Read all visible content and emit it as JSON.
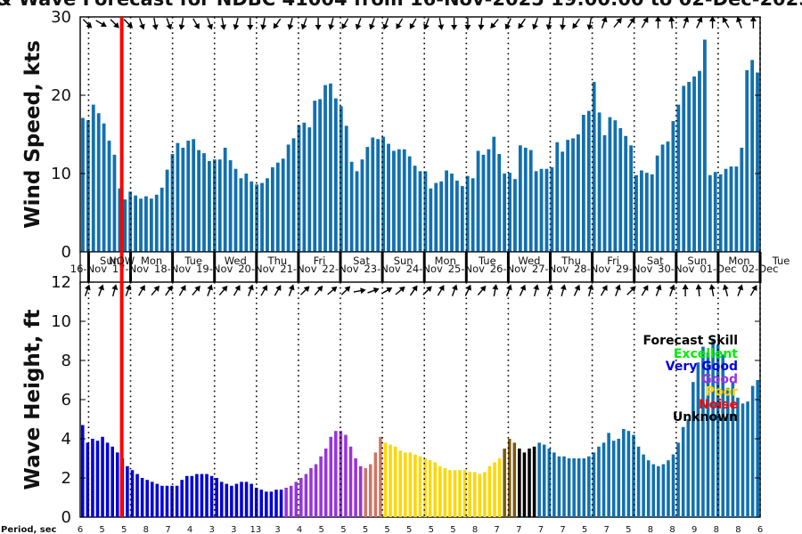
{
  "title": "& Wave Forecast for NDBC 41004 from 16-Nov-2025 19:00:00 to 02-Dec-2025",
  "now_label": "NOW",
  "period_label": "Period, sec",
  "colors": {
    "wind_bar": "#1170b0",
    "now_line": "#ff0000",
    "Excellent": "#00ee00",
    "Very Good": "#0000dd",
    "Good": "#9933dd",
    "Fair": "#cc7766",
    "Poor": "#ffd700",
    "Noise": "#ff0000",
    "Unknown": "#000000",
    "Transition": "#7a5a10",
    "Forecast": "#1170b0"
  },
  "days": [
    {
      "dow": "Sun",
      "date": "16-Nov"
    },
    {
      "dow": "Mon",
      "date": "17-Nov"
    },
    {
      "dow": "Tue",
      "date": "18-Nov"
    },
    {
      "dow": "Wed",
      "date": "19-Nov"
    },
    {
      "dow": "Thu",
      "date": "20-Nov"
    },
    {
      "dow": "Fri",
      "date": "21-Nov"
    },
    {
      "dow": "Sat",
      "date": "22-Nov"
    },
    {
      "dow": "Sun",
      "date": "23-Nov"
    },
    {
      "dow": "Mon",
      "date": "24-Nov"
    },
    {
      "dow": "Tue",
      "date": "25-Nov"
    },
    {
      "dow": "Wed",
      "date": "26-Nov"
    },
    {
      "dow": "Thu",
      "date": "27-Nov"
    },
    {
      "dow": "Fri",
      "date": "28-Nov"
    },
    {
      "dow": "Sat",
      "date": "29-Nov"
    },
    {
      "dow": "Sun",
      "date": "30-Nov"
    },
    {
      "dow": "Mon",
      "date": "01-Dec"
    },
    {
      "dow": "Tue",
      "date": "02-Dec"
    }
  ],
  "legend": {
    "title": "Forecast Skill",
    "items": [
      "Excellent",
      "Very Good",
      "Good",
      "Poor",
      "Noise",
      "Unknown"
    ]
  },
  "chart_data": [
    {
      "type": "bar",
      "ylabel": "Wind Speed, kts",
      "ylim": [
        0,
        30
      ],
      "yticks": [
        0,
        10,
        20,
        30
      ],
      "x_unit": "days since 16-Nov-2025 00:00",
      "xlim": [
        15.8,
        32.0
      ],
      "now_x": 16.79,
      "values": [
        17.1,
        16.8,
        18.8,
        17.7,
        16.4,
        14.2,
        12.4,
        8.1,
        6.7,
        7.7,
        7.2,
        6.8,
        7.1,
        6.8,
        7.3,
        8.2,
        10.5,
        12.5,
        13.9,
        13.3,
        14.2,
        14.4,
        13.0,
        12.6,
        11.6,
        11.8,
        11.8,
        13.3,
        11.7,
        10.6,
        9.4,
        10.0,
        9.0,
        8.6,
        8.8,
        9.4,
        10.8,
        11.4,
        11.9,
        13.7,
        14.5,
        16.2,
        16.5,
        15.9,
        19.3,
        19.5,
        21.3,
        21.5,
        19.6,
        18.6,
        16.1,
        11.5,
        10.3,
        11.8,
        13.4,
        14.6,
        14.4,
        14.7,
        13.8,
        12.9,
        13.1,
        13.1,
        12.2,
        11.0,
        10.3,
        10.3,
        8.1,
        8.8,
        9.0,
        10.4,
        10.0,
        9.1,
        8.4,
        9.7,
        9.4,
        12.9,
        12.4,
        13.1,
        14.7,
        12.5,
        10.0,
        10.1,
        9.3,
        13.6,
        13.3,
        13.0,
        10.3,
        10.6,
        10.6,
        10.8,
        14.0,
        12.8,
        14.3,
        14.5,
        15.0,
        17.5,
        18.0,
        21.7,
        17.8,
        14.9,
        17.2,
        16.8,
        15.8,
        14.8,
        13.6,
        9.8,
        10.4,
        10.1,
        9.9,
        12.3,
        13.7,
        14.1,
        16.7,
        18.8,
        21.2,
        21.7,
        22.4,
        23.1,
        27.1,
        9.8,
        10.2,
        9.9,
        10.6,
        10.9,
        10.9,
        13.3,
        23.2,
        24.5,
        22.9
      ]
    },
    {
      "type": "bar",
      "ylabel": "Wave Height, ft",
      "ylim": [
        0,
        12
      ],
      "yticks": [
        0,
        2,
        4,
        6,
        8,
        10,
        12
      ],
      "xlim": [
        15.8,
        32.0
      ],
      "now_x": 16.79,
      "values": [
        4.7,
        3.8,
        4.0,
        3.9,
        4.1,
        3.8,
        3.6,
        3.3,
        3.0,
        2.6,
        2.4,
        2.2,
        2.0,
        1.9,
        1.8,
        1.7,
        1.6,
        1.6,
        1.6,
        1.6,
        1.9,
        2.1,
        2.1,
        2.2,
        2.2,
        2.2,
        2.1,
        2.0,
        1.8,
        1.7,
        1.6,
        1.7,
        1.8,
        1.8,
        1.7,
        1.5,
        1.4,
        1.3,
        1.3,
        1.4,
        1.4,
        1.5,
        1.6,
        1.8,
        2.0,
        2.2,
        2.5,
        2.7,
        3.1,
        3.5,
        4.1,
        4.4,
        4.4,
        4.2,
        3.6,
        3.0,
        2.6,
        2.5,
        2.7,
        3.3,
        4.1,
        3.8,
        3.7,
        3.6,
        3.4,
        3.3,
        3.3,
        3.2,
        3.1,
        3.0,
        2.9,
        2.8,
        2.6,
        2.5,
        2.4,
        2.4,
        2.4,
        2.4,
        2.3,
        2.3,
        2.2,
        2.3,
        2.6,
        2.8,
        3.0,
        3.5,
        4.0,
        3.8,
        3.5,
        3.3,
        3.5,
        3.6,
        3.8,
        3.7,
        3.5,
        3.3,
        3.1,
        3.1,
        3.0,
        3.0,
        3.0,
        3.0,
        3.1,
        3.3,
        3.6,
        3.8,
        4.3,
        3.9,
        4.0,
        4.5,
        4.4,
        4.2,
        3.6,
        3.2,
        2.9,
        2.7,
        2.6,
        2.7,
        2.9,
        3.2,
        3.8,
        4.6,
        5.0,
        6.9,
        7.9,
        8.7,
        8.4,
        9.1,
        8.8,
        8.3,
        6.6,
        6.9,
        6.1,
        5.8,
        5.9,
        6.7,
        7.0
      ],
      "skill": [
        "Very Good",
        "Very Good",
        "Very Good",
        "Very Good",
        "Very Good",
        "Very Good",
        "Very Good",
        "Very Good",
        "Very Good",
        "Very Good",
        "Very Good",
        "Very Good",
        "Very Good",
        "Very Good",
        "Very Good",
        "Very Good",
        "Very Good",
        "Very Good",
        "Very Good",
        "Very Good",
        "Very Good",
        "Very Good",
        "Very Good",
        "Very Good",
        "Very Good",
        "Very Good",
        "Very Good",
        "Very Good",
        "Very Good",
        "Very Good",
        "Very Good",
        "Very Good",
        "Very Good",
        "Very Good",
        "Very Good",
        "Very Good",
        "Very Good",
        "Very Good",
        "Very Good",
        "Very Good",
        "Very Good",
        "Good",
        "Good",
        "Good",
        "Good",
        "Good",
        "Good",
        "Good",
        "Good",
        "Good",
        "Good",
        "Good",
        "Good",
        "Good",
        "Good",
        "Good",
        "Good",
        "Fair",
        "Fair",
        "Fair",
        "Fair",
        "Poor",
        "Poor",
        "Poor",
        "Poor",
        "Poor",
        "Poor",
        "Poor",
        "Poor",
        "Poor",
        "Poor",
        "Poor",
        "Poor",
        "Poor",
        "Poor",
        "Poor",
        "Poor",
        "Poor",
        "Poor",
        "Poor",
        "Poor",
        "Poor",
        "Poor",
        "Poor",
        "Poor",
        "Transition",
        "Transition",
        "Transition",
        "Unknown",
        "Unknown",
        "Unknown",
        "Unknown",
        "Forecast",
        "Forecast",
        "Forecast",
        "Forecast",
        "Forecast",
        "Forecast",
        "Forecast",
        "Forecast",
        "Forecast",
        "Forecast",
        "Forecast",
        "Forecast",
        "Forecast",
        "Forecast",
        "Forecast",
        "Forecast",
        "Forecast",
        "Forecast",
        "Forecast",
        "Forecast",
        "Forecast",
        "Forecast",
        "Forecast",
        "Forecast",
        "Forecast",
        "Forecast",
        "Forecast",
        "Forecast",
        "Forecast",
        "Forecast",
        "Forecast",
        "Forecast",
        "Forecast",
        "Forecast",
        "Forecast",
        "Forecast",
        "Forecast",
        "Forecast",
        "Forecast",
        "Forecast",
        "Forecast",
        "Forecast",
        "Forecast",
        "Forecast",
        "Forecast"
      ]
    }
  ],
  "periods": [
    "6",
    "5",
    "5",
    "8",
    "7",
    "4",
    "3",
    "3",
    "13",
    "3",
    "4",
    "5",
    "5",
    "5",
    "5",
    "5",
    "5",
    "5",
    "8",
    "7",
    "7",
    "7",
    "7",
    "5",
    "7",
    "5",
    "8",
    "8",
    "9",
    "8",
    "8",
    "6"
  ],
  "wind_arrow_deg": [
    135,
    120,
    135,
    135,
    160,
    170,
    160,
    190,
    150,
    160,
    170,
    195,
    180,
    190,
    215,
    195,
    200,
    180,
    195,
    210,
    200,
    200,
    200,
    210,
    210,
    200,
    170,
    180,
    180,
    185,
    220,
    205,
    215,
    200,
    190,
    185,
    215,
    190,
    20,
    40,
    35,
    30,
    360,
    355,
    20,
    25,
    360,
    330,
    340,
    360
  ],
  "wave_arrow_deg": [
    20,
    20,
    15,
    20,
    30,
    40,
    35,
    30,
    40,
    20,
    40,
    30,
    20,
    30,
    30,
    20,
    45,
    40,
    50,
    45,
    80,
    70,
    60,
    50,
    35,
    45,
    30,
    20,
    25,
    40,
    10,
    20,
    25,
    15,
    20,
    15,
    25,
    15,
    30,
    20,
    45,
    30,
    20,
    20,
    360,
    355,
    350,
    345,
    20,
    30
  ]
}
